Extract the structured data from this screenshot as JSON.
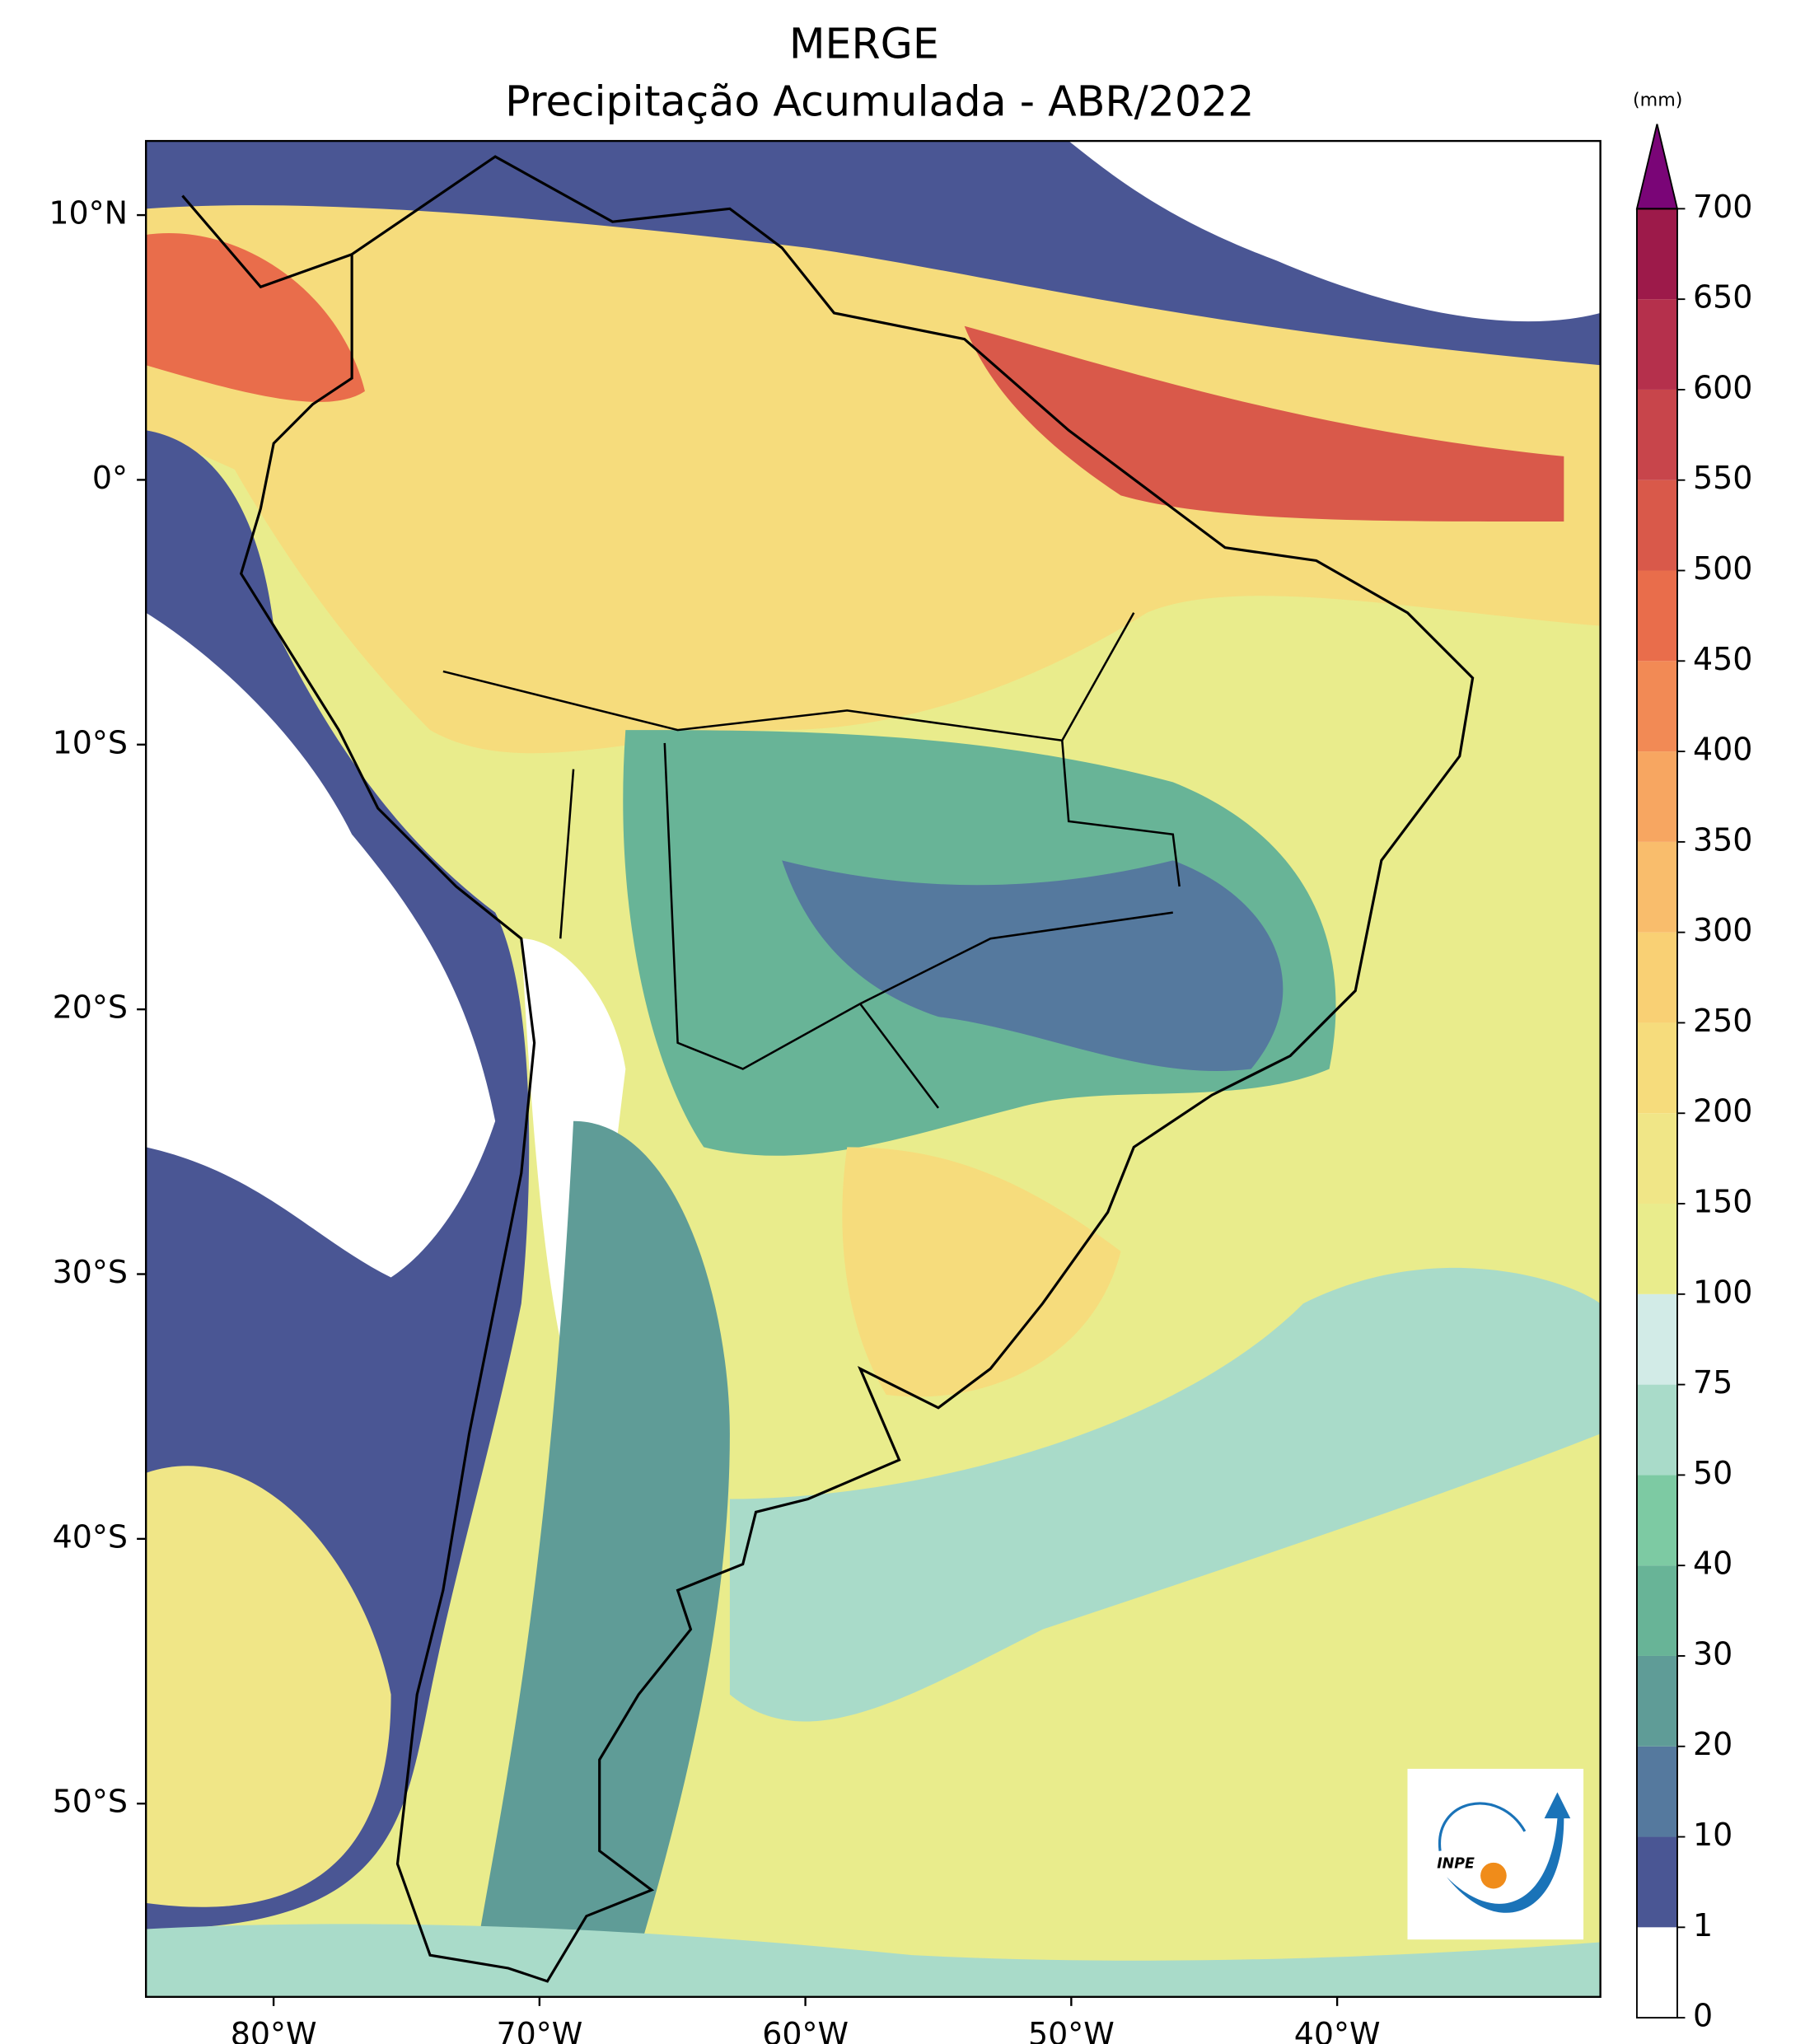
{
  "title": "MERGE",
  "subtitle": "Precipitação Acumulada - ABR/2022",
  "map": {
    "xlim": [
      -84.8,
      -30.1
    ],
    "ylim": [
      -57.3,
      12.8
    ],
    "xticks": [
      {
        "value": -80,
        "label": "80°W"
      },
      {
        "value": -70,
        "label": "70°W"
      },
      {
        "value": -60,
        "label": "60°W"
      },
      {
        "value": -50,
        "label": "50°W"
      },
      {
        "value": -40,
        "label": "40°W"
      }
    ],
    "yticks": [
      {
        "value": 10,
        "label": "10°N"
      },
      {
        "value": 0,
        "label": "0°"
      },
      {
        "value": -10,
        "label": "10°S"
      },
      {
        "value": -20,
        "label": "20°S"
      },
      {
        "value": -30,
        "label": "30°S"
      },
      {
        "value": -40,
        "label": "40°S"
      },
      {
        "value": -50,
        "label": "50°S"
      }
    ]
  },
  "colorbar": {
    "label": "(mm)",
    "levels": [
      0,
      1,
      10,
      20,
      30,
      40,
      50,
      75,
      100,
      150,
      200,
      250,
      300,
      350,
      400,
      450,
      500,
      550,
      600,
      650,
      700
    ],
    "colors": [
      "#ffffff",
      "#4a5694",
      "#55799e",
      "#5f9c97",
      "#68b497",
      "#7dcaa3",
      "#a9dbc9",
      "#d2ebe7",
      "#e9ec8c",
      "#f0e687",
      "#f6dc7c",
      "#f9d074",
      "#f9bd6c",
      "#f7a661",
      "#f28a55",
      "#e96d4b",
      "#d9594a",
      "#c8454b",
      "#b5304c",
      "#9d1a4a"
    ],
    "extend_color": "#7a0577"
  },
  "logo": "INPE"
}
